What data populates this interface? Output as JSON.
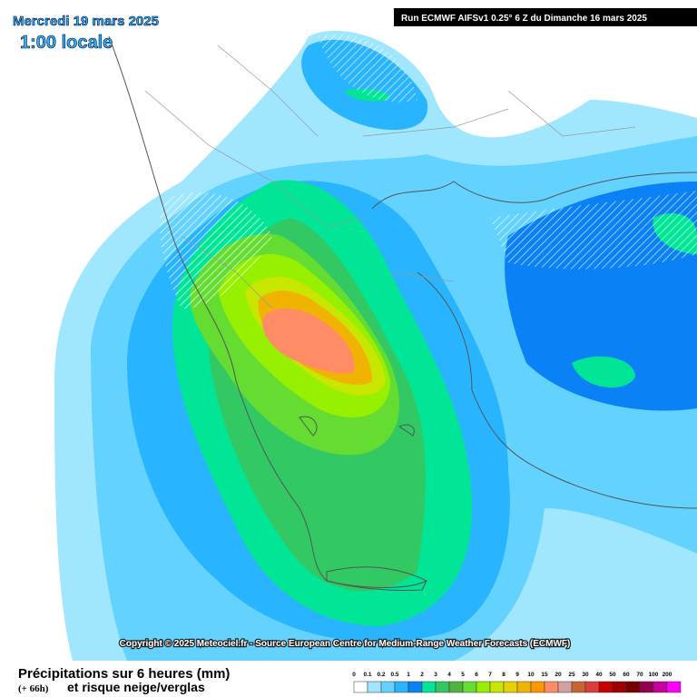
{
  "header": {
    "date": "Mercredi 19 mars 2025",
    "time": "1:00 locale",
    "run": "Run ECMWF AIFSv1 0.25° 6 Z du Dimanche 16 mars 2025"
  },
  "copyright": "Copyright © 2025 Meteociel.fr - Source European Centre for Medium-Range Weather Forecasts (ECMWF)",
  "footer": {
    "title": "Précipitations sur 6 heures (mm)",
    "lead": "(+ 66h)",
    "subtitle": "et risque neige/verglas"
  },
  "legend": [
    {
      "label": "0",
      "color": "#ffffff"
    },
    {
      "label": "0.1",
      "color": "#a0e6ff"
    },
    {
      "label": "0.2",
      "color": "#64d2ff"
    },
    {
      "label": "0.5",
      "color": "#28b4ff"
    },
    {
      "label": "1",
      "color": "#0a82f5"
    },
    {
      "label": "2",
      "color": "#00e696"
    },
    {
      "label": "3",
      "color": "#32c864"
    },
    {
      "label": "4",
      "color": "#50b43c"
    },
    {
      "label": "5",
      "color": "#64dc32"
    },
    {
      "label": "6",
      "color": "#96f000"
    },
    {
      "label": "7",
      "color": "#c8e600"
    },
    {
      "label": "8",
      "color": "#e6d200"
    },
    {
      "label": "9",
      "color": "#f0b400"
    },
    {
      "label": "10",
      "color": "#ff9600"
    },
    {
      "label": "15",
      "color": "#ff8c64"
    },
    {
      "label": "20",
      "color": "#d2a0a0"
    },
    {
      "label": "25",
      "color": "#c86432"
    },
    {
      "label": "30",
      "color": "#dc3c3c"
    },
    {
      "label": "40",
      "color": "#c80000"
    },
    {
      "label": "50",
      "color": "#a00000"
    },
    {
      "label": "60",
      "color": "#780000"
    },
    {
      "label": "70",
      "color": "#960050"
    },
    {
      "label": "100",
      "color": "#c800a0"
    },
    {
      "label": "200",
      "color": "#ff00ff"
    }
  ]
}
